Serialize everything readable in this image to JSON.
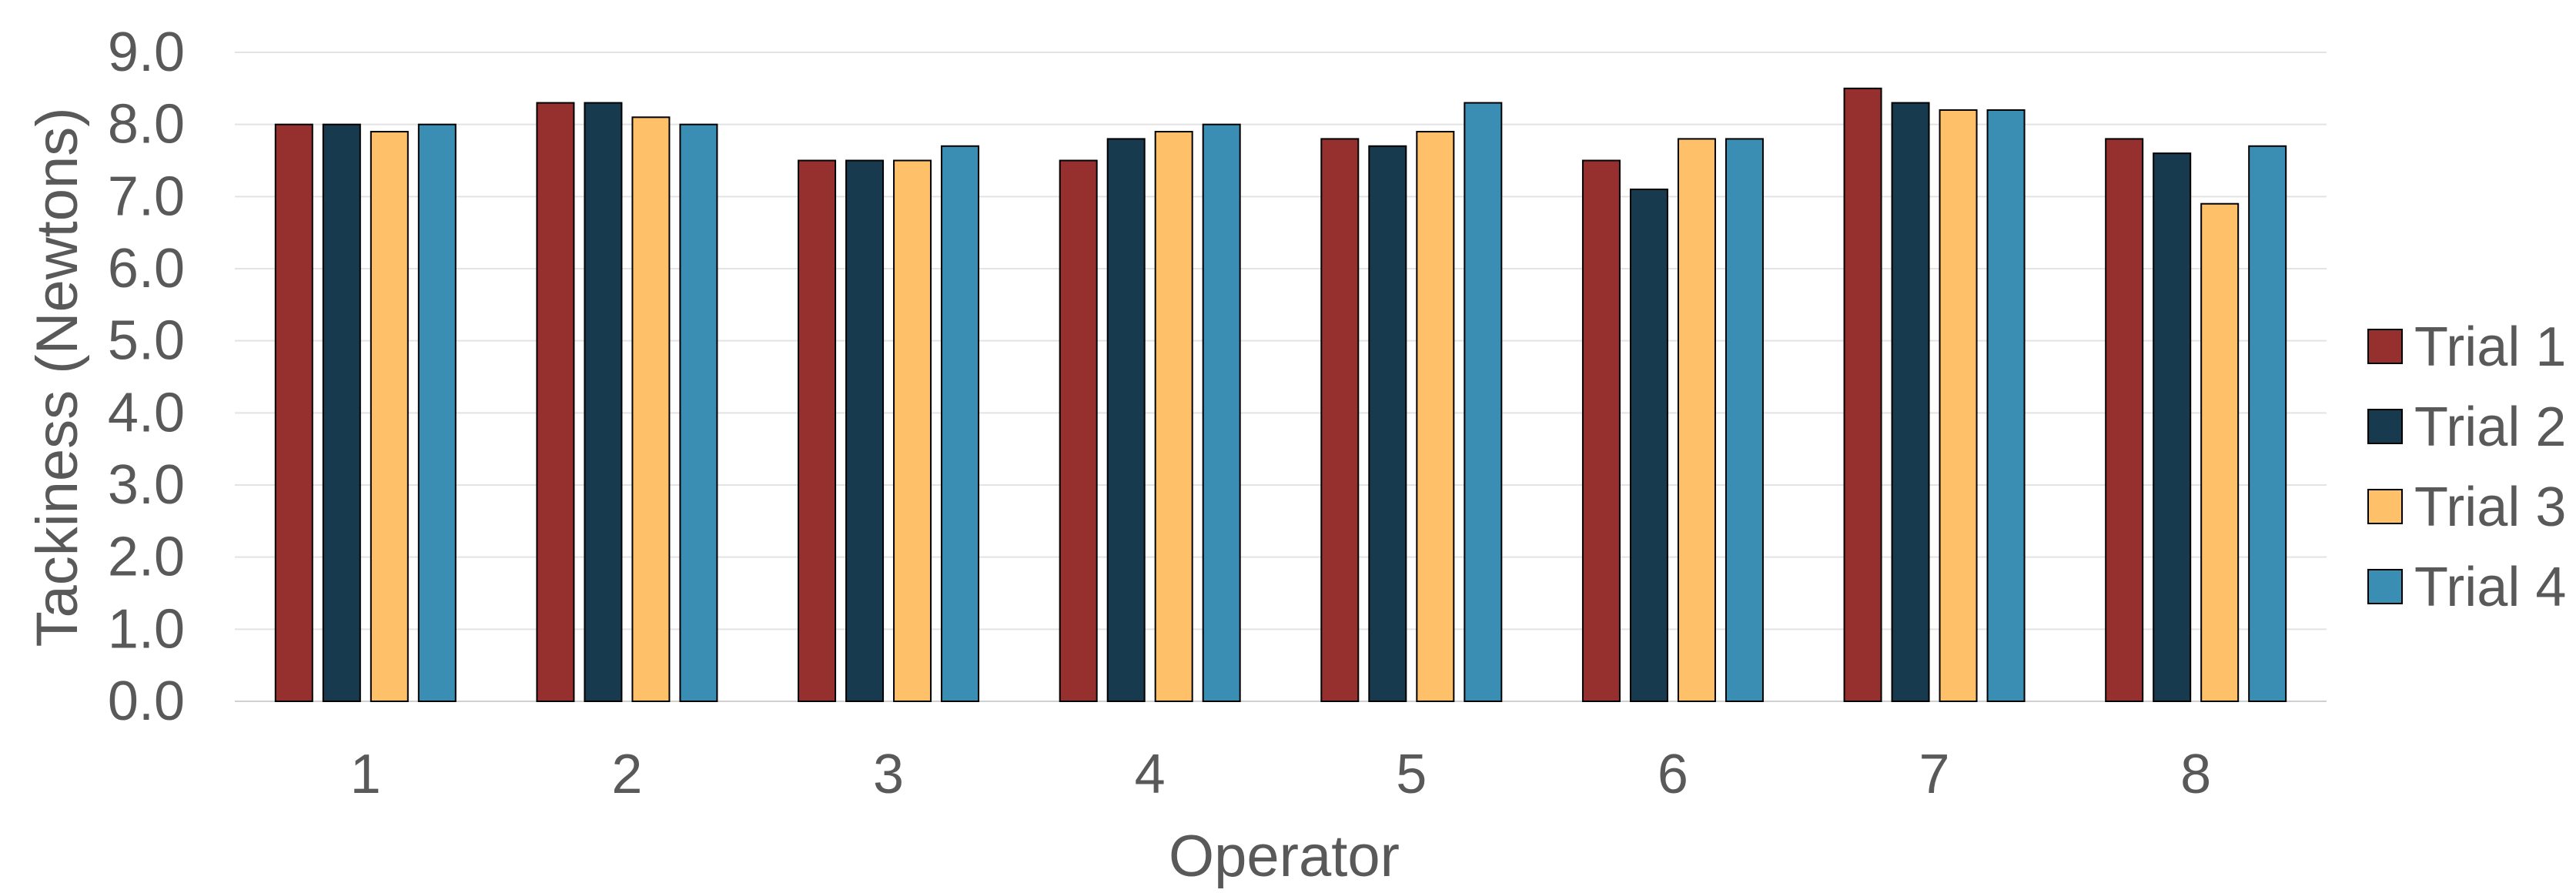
{
  "chart_data": {
    "type": "bar",
    "title": "",
    "xlabel": "Operator",
    "ylabel": "Tackiness (Newtons)",
    "ylim": [
      0,
      9
    ],
    "y_ticks": [
      "0.0",
      "1.0",
      "2.0",
      "3.0",
      "4.0",
      "5.0",
      "6.0",
      "7.0",
      "8.0",
      "9.0"
    ],
    "categories": [
      "1",
      "2",
      "3",
      "4",
      "5",
      "6",
      "7",
      "8"
    ],
    "grid": true,
    "legend_position": "right",
    "series": [
      {
        "name": "Trial 1",
        "color": "#96302E",
        "values": [
          8.0,
          8.3,
          7.5,
          7.5,
          7.8,
          7.5,
          8.5,
          7.8
        ]
      },
      {
        "name": "Trial 2",
        "color": "#173A4F",
        "values": [
          8.0,
          8.3,
          7.5,
          7.8,
          7.7,
          7.1,
          8.3,
          7.6
        ]
      },
      {
        "name": "Trial 3",
        "color": "#FFC06A",
        "values": [
          7.9,
          8.1,
          7.5,
          7.9,
          7.9,
          7.8,
          8.2,
          6.9
        ]
      },
      {
        "name": "Trial 4",
        "color": "#3A8DB3",
        "values": [
          8.0,
          8.0,
          7.7,
          8.0,
          8.3,
          7.8,
          8.2,
          7.7
        ]
      }
    ]
  }
}
